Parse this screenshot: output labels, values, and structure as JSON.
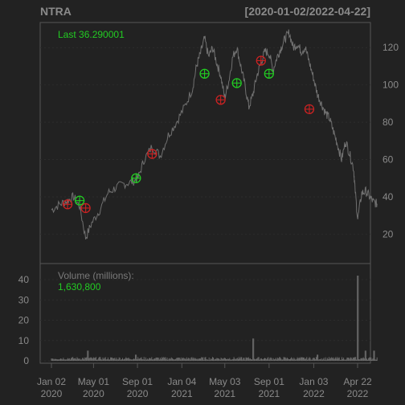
{
  "chart_data": [
    {
      "type": "line",
      "title": "NTRA",
      "date_range": "[2020-01-02/2022-04-22]",
      "last_label": "Last 36.290001",
      "ylim": [
        12,
        130
      ],
      "y_ticks": [
        "20",
        "40",
        "60",
        "80",
        "100",
        "120"
      ],
      "x_ticks": [
        {
          "top": "Jan 02",
          "bottom": "2020",
          "t": 0
        },
        {
          "top": "May 01",
          "bottom": "2020",
          "t": 0.1045
        },
        {
          "top": "Sep 01",
          "bottom": "2020",
          "t": 0.2135
        },
        {
          "top": "Jan 04",
          "bottom": "2021",
          "t": 0.3237
        },
        {
          "top": "May 03",
          "bottom": "2021",
          "t": 0.4302
        },
        {
          "top": "Sep 01",
          "bottom": "2021",
          "t": 0.5401
        },
        {
          "top": "Jan 03",
          "bottom": "2022",
          "t": 0.6509
        },
        {
          "top": "Apr 22",
          "bottom": "2022",
          "t": 0.7597
        }
      ],
      "price_path": [
        [
          0.0,
          33
        ],
        [
          0.02,
          36
        ],
        [
          0.04,
          38
        ],
        [
          0.055,
          40
        ],
        [
          0.07,
          35
        ],
        [
          0.085,
          18
        ],
        [
          0.1,
          26
        ],
        [
          0.12,
          33
        ],
        [
          0.14,
          42
        ],
        [
          0.16,
          45
        ],
        [
          0.18,
          47
        ],
        [
          0.2,
          48
        ],
        [
          0.215,
          50
        ],
        [
          0.23,
          60
        ],
        [
          0.25,
          67
        ],
        [
          0.27,
          62
        ],
        [
          0.29,
          73
        ],
        [
          0.31,
          80
        ],
        [
          0.33,
          88
        ],
        [
          0.35,
          98
        ],
        [
          0.36,
          110
        ],
        [
          0.37,
          117
        ],
        [
          0.38,
          125
        ],
        [
          0.39,
          115
        ],
        [
          0.4,
          120
        ],
        [
          0.41,
          112
        ],
        [
          0.42,
          105
        ],
        [
          0.43,
          93
        ],
        [
          0.44,
          102
        ],
        [
          0.45,
          115
        ],
        [
          0.46,
          120
        ],
        [
          0.47,
          110
        ],
        [
          0.48,
          100
        ],
        [
          0.49,
          88
        ],
        [
          0.5,
          95
        ],
        [
          0.51,
          105
        ],
        [
          0.52,
          112
        ],
        [
          0.53,
          118
        ],
        [
          0.54,
          117
        ],
        [
          0.55,
          108
        ],
        [
          0.56,
          115
        ],
        [
          0.57,
          120
        ],
        [
          0.58,
          125
        ],
        [
          0.59,
          128
        ],
        [
          0.6,
          120
        ],
        [
          0.61,
          122
        ],
        [
          0.62,
          118
        ],
        [
          0.63,
          120
        ],
        [
          0.64,
          112
        ],
        [
          0.65,
          104
        ],
        [
          0.66,
          95
        ],
        [
          0.67,
          90
        ],
        [
          0.68,
          85
        ],
        [
          0.69,
          82
        ],
        [
          0.7,
          75
        ],
        [
          0.71,
          68
        ],
        [
          0.72,
          60
        ],
        [
          0.73,
          70
        ],
        [
          0.74,
          63
        ],
        [
          0.75,
          55
        ],
        [
          0.753,
          45
        ],
        [
          0.76,
          28
        ],
        [
          0.77,
          42
        ],
        [
          0.78,
          43
        ],
        [
          0.79,
          40
        ],
        [
          0.8,
          37
        ],
        [
          0.808,
          36.29
        ]
      ],
      "buy_markers": [
        [
          0.07,
          38
        ],
        [
          0.21,
          50
        ],
        [
          0.38,
          106
        ],
        [
          0.46,
          101
        ],
        [
          0.54,
          106
        ]
      ],
      "sell_markers": [
        [
          0.04,
          36
        ],
        [
          0.085,
          34
        ],
        [
          0.25,
          63
        ],
        [
          0.42,
          92
        ],
        [
          0.52,
          113
        ],
        [
          0.64,
          87
        ]
      ],
      "volume": {
        "label": "Volume (millions):",
        "value": "1,630,800",
        "ylim": [
          0,
          42
        ],
        "y_ticks": [
          "0",
          "10",
          "20",
          "30",
          "40"
        ],
        "base_level": 1.2,
        "spikes": [
          [
            0.09,
            5
          ],
          [
            0.21,
            3
          ],
          [
            0.5,
            11
          ],
          [
            0.66,
            3
          ],
          [
            0.76,
            42
          ],
          [
            0.78,
            5
          ],
          [
            0.8,
            5
          ]
        ]
      }
    }
  ]
}
